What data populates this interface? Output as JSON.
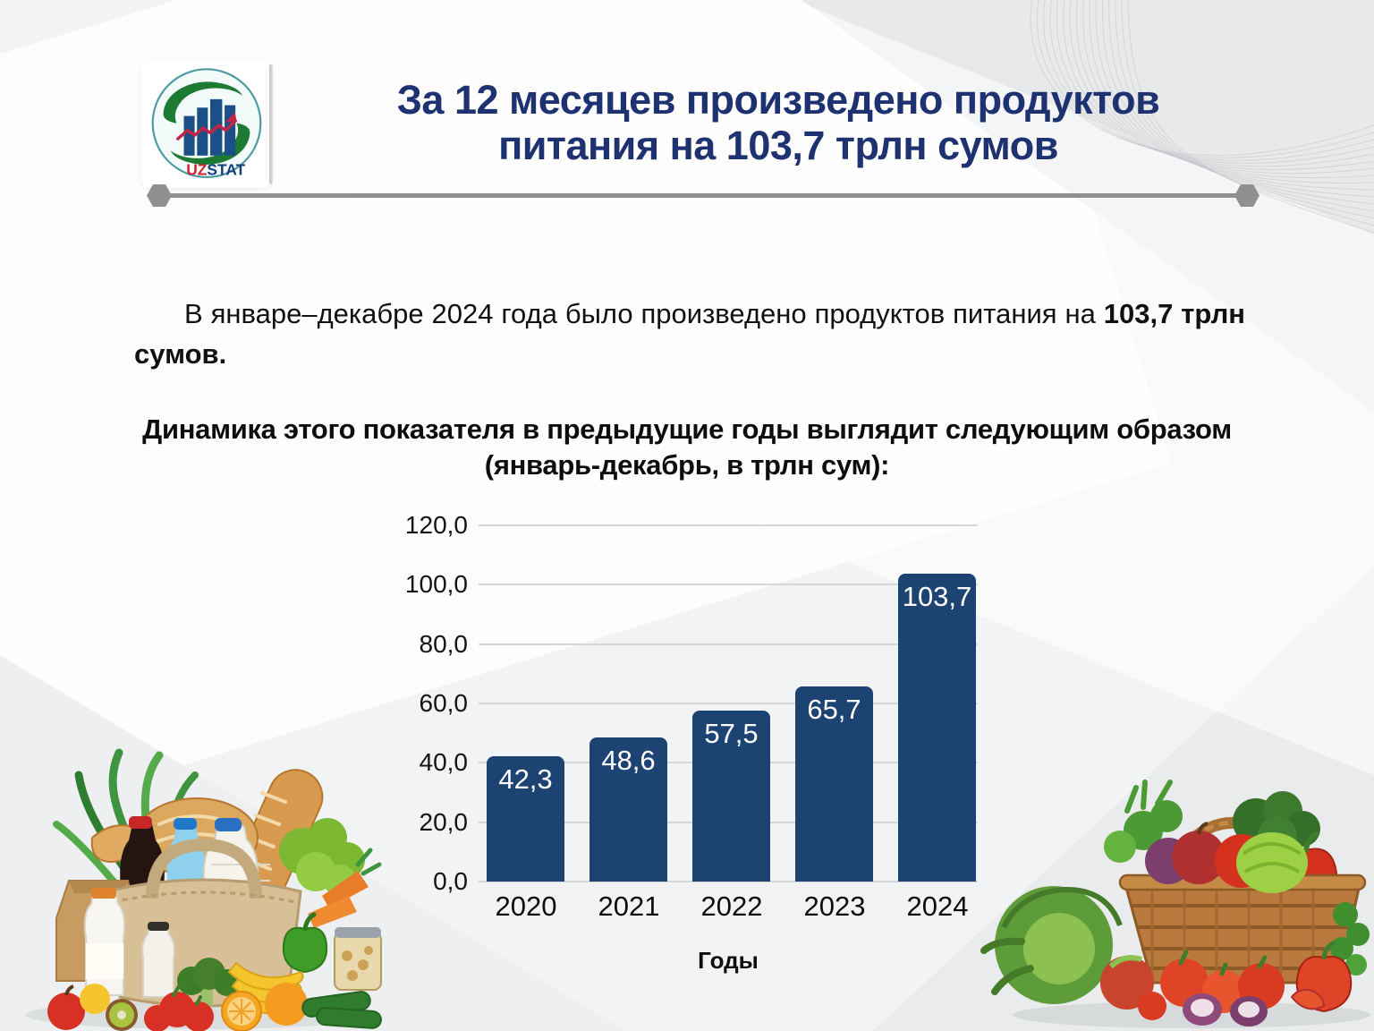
{
  "header": {
    "title_line1": "За 12 месяцев произведено продуктов",
    "title_line2": "питания на 103,7 трлн сумов",
    "title_color": "#1e3170"
  },
  "logo": {
    "uz": "UZ",
    "stat": "STAT",
    "uz_color": "#d32330",
    "stat_color": "#16407f"
  },
  "intro": {
    "normal": "В январе–декабре 2024 года было произведено продуктов питания на ",
    "bold": "103,7 трлн сумов."
  },
  "chart_heading": {
    "line1": "Динамика этого показателя в предыдущие годы выглядит следующим образом",
    "line2": "(январь-декабрь, в трлн сум):"
  },
  "chart_data": {
    "type": "bar",
    "categories": [
      "2020",
      "2021",
      "2022",
      "2023",
      "2024"
    ],
    "values": [
      42.3,
      48.6,
      57.5,
      65.7,
      103.7
    ],
    "value_labels": [
      "42,3",
      "48,6",
      "57,5",
      "65,7",
      "103,7"
    ],
    "y_ticks": [
      "120,0",
      "100,0",
      "80,0",
      "60,0",
      "40,0",
      "20,0",
      "0,0"
    ],
    "ylim": [
      0,
      120
    ],
    "xlabel": "Годы",
    "title": "Динамика этого показателя в предыдущие годы (январь-декабрь, в трлн сум)",
    "bar_color": "#1d4372",
    "label_color": "#ffffff",
    "grid": true,
    "legend": "none"
  }
}
